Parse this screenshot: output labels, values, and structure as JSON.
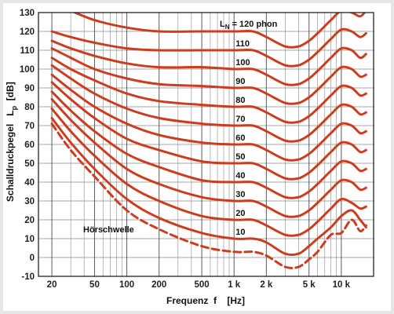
{
  "chart_data": {
    "type": "line",
    "xscale": "log",
    "xlim": [
      15,
      20000
    ],
    "ylim": [
      -10,
      130
    ],
    "grid": true,
    "xlabel": "Frequenz  f    [Hz]",
    "ylabel_main": "Schalldruckpegel   L",
    "ylabel_sub": "p",
    "ylabel_unit": "[dB]",
    "x_ticks": [
      {
        "value": 20,
        "label": "20"
      },
      {
        "value": 50,
        "label": "50"
      },
      {
        "value": 100,
        "label": "100"
      },
      {
        "value": 200,
        "label": "200"
      },
      {
        "value": 500,
        "label": "500"
      },
      {
        "value": 1000,
        "label": "1 k"
      },
      {
        "value": 2000,
        "label": "2 k"
      },
      {
        "value": 5000,
        "label": "5 k"
      },
      {
        "value": 10000,
        "label": "10 k"
      }
    ],
    "y_ticks": [
      -10,
      0,
      10,
      20,
      30,
      40,
      50,
      60,
      70,
      80,
      90,
      100,
      110,
      120,
      130
    ],
    "line_color": "#cc3d1f",
    "header_label": {
      "main": "L",
      "sub": "N",
      "rest": " = 120  phon"
    },
    "threshold_label": "Hörschwelle",
    "series": [
      {
        "name": "",
        "label": "",
        "dashed": true,
        "x": [
          20,
          30,
          50,
          100,
          200,
          500,
          1000,
          1500,
          2000,
          3000,
          4000,
          5000,
          6000,
          8000,
          10000,
          12500,
          15000,
          17000
        ],
        "y": [
          71,
          57,
          43,
          25,
          15,
          6,
          3,
          3,
          1,
          -5,
          -5,
          -1,
          3,
          12,
          13,
          20,
          14,
          17
        ]
      },
      {
        "name": "10",
        "label": "10",
        "dashed": false,
        "x": [
          20,
          30,
          50,
          100,
          200,
          500,
          1000,
          1500,
          2000,
          3000,
          4000,
          5000,
          6000,
          8000,
          10000,
          12500,
          15000,
          17000
        ],
        "y": [
          74,
          61,
          47,
          31,
          21,
          13,
          10,
          10,
          8,
          2,
          2,
          6,
          10,
          16,
          22,
          25,
          20,
          16
        ]
      },
      {
        "name": "20",
        "label": "20",
        "dashed": false,
        "x": [
          20,
          30,
          50,
          100,
          200,
          500,
          1000,
          1500,
          2000,
          3000,
          4000,
          5000,
          6000,
          8000,
          10000,
          12500,
          15000,
          17000
        ],
        "y": [
          79,
          67,
          54,
          39,
          30,
          22,
          20,
          20,
          17,
          12,
          12,
          15,
          19,
          26,
          31,
          29,
          26,
          27
        ]
      },
      {
        "name": "30",
        "label": "30",
        "dashed": false,
        "x": [
          20,
          30,
          50,
          100,
          200,
          500,
          1000,
          1500,
          2000,
          3000,
          4000,
          5000,
          6000,
          8000,
          10000,
          12500,
          15000,
          17000
        ],
        "y": [
          84,
          73,
          61,
          47,
          39,
          32,
          30,
          30,
          27,
          22,
          22,
          25,
          29,
          36,
          41,
          40,
          36,
          37
        ]
      },
      {
        "name": "40",
        "label": "40",
        "dashed": false,
        "x": [
          20,
          30,
          50,
          100,
          200,
          500,
          1000,
          1500,
          2000,
          3000,
          4000,
          5000,
          6000,
          8000,
          10000,
          12500,
          15000,
          17000
        ],
        "y": [
          88,
          78,
          67,
          55,
          48,
          41,
          40,
          40,
          37,
          32,
          32,
          35,
          39,
          46,
          51,
          50,
          46,
          47
        ]
      },
      {
        "name": "50",
        "label": "50",
        "dashed": false,
        "x": [
          20,
          30,
          50,
          100,
          200,
          500,
          1000,
          1500,
          2000,
          3000,
          4000,
          5000,
          6000,
          8000,
          10000,
          12500,
          15000,
          17000
        ],
        "y": [
          93,
          84,
          74,
          63,
          57,
          51,
          50,
          50,
          47,
          42,
          42,
          45,
          49,
          56,
          61,
          60,
          56,
          57
        ]
      },
      {
        "name": "60",
        "label": "60",
        "dashed": false,
        "x": [
          20,
          30,
          50,
          100,
          200,
          500,
          1000,
          1500,
          2000,
          3000,
          4000,
          5000,
          6000,
          8000,
          10000,
          12500,
          15000,
          17000
        ],
        "y": [
          97,
          89,
          80,
          71,
          65,
          61,
          60,
          60,
          57,
          52,
          52,
          55,
          59,
          66,
          71,
          70,
          66,
          67
        ]
      },
      {
        "name": "70",
        "label": "70",
        "dashed": false,
        "x": [
          20,
          30,
          50,
          100,
          200,
          500,
          1000,
          1500,
          2000,
          3000,
          4000,
          5000,
          6000,
          8000,
          10000,
          12500,
          15000,
          17000
        ],
        "y": [
          102,
          95,
          87,
          79,
          74,
          71,
          70,
          70,
          67,
          62,
          62,
          65,
          69,
          76,
          81,
          80,
          76,
          77
        ]
      },
      {
        "name": "80",
        "label": "80",
        "dashed": false,
        "x": [
          20,
          30,
          50,
          100,
          200,
          500,
          1000,
          1500,
          2000,
          3000,
          4000,
          5000,
          6000,
          8000,
          10000,
          12500,
          15000,
          17000
        ],
        "y": [
          106,
          100,
          94,
          87,
          83,
          81,
          80,
          80,
          77,
          72,
          72,
          75,
          79,
          86,
          91,
          90,
          86,
          87
        ]
      },
      {
        "name": "90",
        "label": "90",
        "dashed": false,
        "x": [
          20,
          30,
          50,
          100,
          200,
          500,
          1000,
          1500,
          2000,
          3000,
          4000,
          5000,
          6000,
          8000,
          10000,
          12500,
          15000,
          17000
        ],
        "y": [
          111,
          106,
          100,
          95,
          92,
          91,
          90,
          90,
          87,
          82,
          82,
          85,
          89,
          96,
          101,
          100,
          96,
          97
        ]
      },
      {
        "name": "100",
        "label": "100",
        "dashed": false,
        "x": [
          20,
          30,
          50,
          100,
          200,
          500,
          1000,
          1500,
          2000,
          3000,
          4000,
          5000,
          6000,
          8000,
          10000,
          12500,
          15000,
          17000
        ],
        "y": [
          115,
          111,
          107,
          103,
          101,
          101,
          100,
          100,
          97,
          92,
          92,
          95,
          99,
          106,
          111,
          110,
          106,
          108
        ]
      },
      {
        "name": "110",
        "label": "110",
        "dashed": false,
        "x": [
          20,
          30,
          50,
          100,
          200,
          500,
          1000,
          1500,
          2000,
          3000,
          4000,
          5000,
          6000,
          8000,
          10000,
          12500,
          15000,
          17000
        ],
        "y": [
          120,
          117,
          114,
          111,
          110,
          110,
          110,
          110,
          107,
          102,
          102,
          105,
          109,
          116,
          121,
          120,
          117,
          119
        ]
      },
      {
        "name": "120",
        "label": "",
        "dashed": false,
        "x": [
          30,
          50,
          100,
          200,
          500,
          1000,
          1500,
          2000,
          3000,
          4000,
          5000,
          6000,
          8000,
          10000,
          12500,
          15000,
          17000
        ],
        "y": [
          131,
          126,
          122,
          120,
          120,
          120,
          120,
          117,
          112,
          112,
          115,
          119,
          126,
          131,
          130,
          128,
          131
        ]
      }
    ]
  }
}
